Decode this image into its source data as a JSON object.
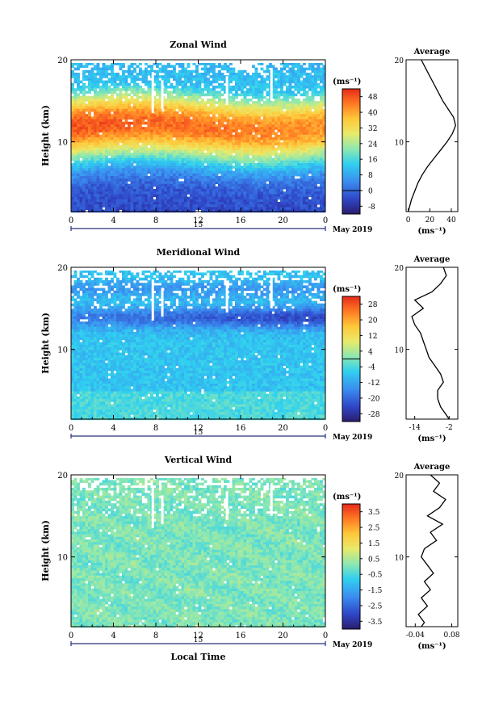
{
  "chart_data": [
    {
      "type": "heatmap",
      "title": "Zonal Wind",
      "ylabel": "Height (km)",
      "xticks": [
        "0",
        "4",
        "8",
        "12",
        "16",
        "20",
        "0"
      ],
      "yticks": [
        "10",
        "20"
      ],
      "xlim": [
        0,
        24
      ],
      "ylim": [
        1.5,
        20
      ],
      "day_label": "15",
      "date_label": "May 2019",
      "colorbar": {
        "unit": "(ms⁻¹)",
        "ticks": [
          "48",
          "40",
          "32",
          "24",
          "16",
          "8",
          "0",
          "-8"
        ],
        "range": [
          -12,
          52
        ],
        "contour_at": 0
      },
      "structure": {
        "jet_height_km": 12,
        "jet_peak": 48,
        "surface_value": -4,
        "top_value": 10
      },
      "profile": {
        "title": "Average",
        "xlabel": "(ms⁻¹)",
        "xticks": [
          "0",
          "20",
          "40"
        ],
        "xlim": [
          -2,
          46
        ],
        "yticks": [
          "10",
          "20"
        ],
        "height": [
          1.5,
          2,
          3,
          4,
          5,
          6,
          7,
          8,
          9,
          10,
          11,
          12,
          13,
          14,
          15,
          16,
          17,
          18,
          19,
          20
        ],
        "value": [
          0,
          1,
          3,
          6,
          9,
          13,
          18,
          24,
          30,
          36,
          41,
          44,
          42,
          37,
          32,
          28,
          24,
          20,
          16,
          12
        ]
      }
    },
    {
      "type": "heatmap",
      "title": "Meridional Wind",
      "ylabel": "Height (km)",
      "xticks": [
        "0",
        "4",
        "8",
        "12",
        "16",
        "20",
        "0"
      ],
      "yticks": [
        "10",
        "20"
      ],
      "xlim": [
        0,
        24
      ],
      "ylim": [
        1.5,
        20
      ],
      "day_label": "15",
      "date_label": "May 2019",
      "colorbar": {
        "unit": "(ms⁻¹)",
        "ticks": [
          "28",
          "20",
          "12",
          "4",
          "-4",
          "-12",
          "-20",
          "-28"
        ],
        "range": [
          -32,
          32
        ],
        "contour_at": 0
      },
      "structure": {
        "minimum_height_km": 14,
        "minimum_value": -22,
        "background_value": -8
      },
      "profile": {
        "title": "Average",
        "xlabel": "(ms⁻¹)",
        "xticks": [
          "-14",
          "-2"
        ],
        "xlim": [
          -17,
          1
        ],
        "yticks": [
          "10",
          "20"
        ],
        "height": [
          1.5,
          2,
          3,
          4,
          5,
          6,
          7,
          8,
          9,
          10,
          11,
          12,
          13,
          14,
          15,
          16,
          17,
          18,
          19,
          20
        ],
        "value": [
          -2,
          -3,
          -5,
          -6,
          -6,
          -4,
          -5,
          -7,
          -9,
          -10,
          -11,
          -12,
          -14,
          -15,
          -11,
          -14,
          -8,
          -5,
          -3,
          -4
        ]
      }
    },
    {
      "type": "heatmap",
      "title": "Vertical Wind",
      "ylabel": "Height (km)",
      "xlabel": "Local Time",
      "xticks": [
        "0",
        "4",
        "8",
        "12",
        "16",
        "20",
        "0"
      ],
      "yticks": [
        "10",
        "20"
      ],
      "xlim": [
        0,
        24
      ],
      "ylim": [
        1.5,
        20
      ],
      "day_label": "15",
      "date_label": "May 2019",
      "colorbar": {
        "unit": "(ms⁻¹)",
        "ticks": [
          "3.5",
          "2.5",
          "1.5",
          "0.5",
          "-0.5",
          "-1.5",
          "-2.5",
          "-3.5"
        ],
        "range": [
          -4,
          4
        ]
      },
      "structure": {
        "background_value": 0
      },
      "profile": {
        "title": "Average",
        "xlabel": "(ms⁻¹)",
        "xticks": [
          "-0.04",
          "0.08"
        ],
        "xlim": [
          -0.07,
          0.1
        ],
        "yticks": [
          "10",
          "20"
        ],
        "height": [
          1.5,
          2,
          3,
          4,
          5,
          6,
          7,
          8,
          9,
          10,
          11,
          12,
          13,
          14,
          15,
          16,
          17,
          18,
          19,
          20
        ],
        "value": [
          -0.02,
          -0.01,
          -0.03,
          0.0,
          -0.02,
          0.01,
          -0.01,
          0.02,
          0.0,
          -0.02,
          -0.01,
          0.03,
          0.01,
          0.05,
          0.0,
          0.04,
          0.06,
          0.02,
          0.04,
          0.01
        ]
      }
    }
  ]
}
